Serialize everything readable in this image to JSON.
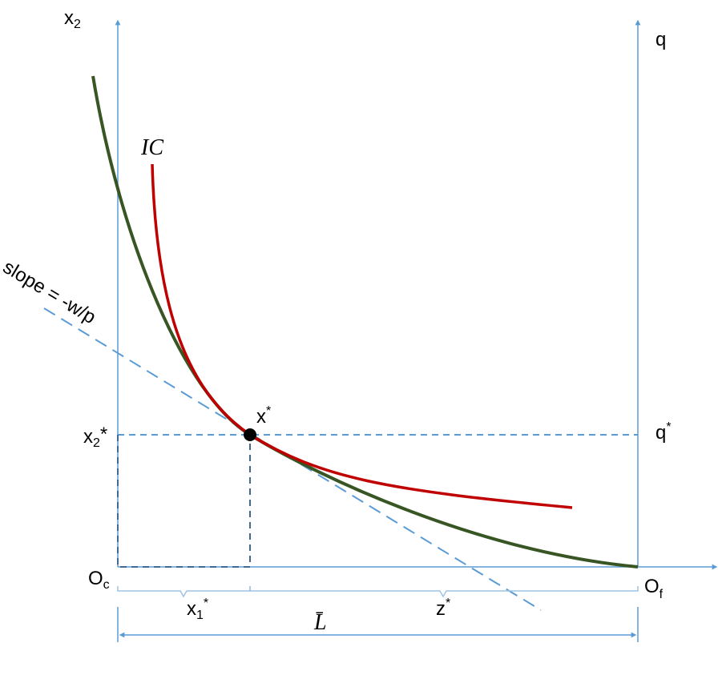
{
  "axes": {
    "left": {
      "base": "x",
      "sub": "2"
    },
    "right": "q",
    "origin_left": {
      "base": "O",
      "sub": "c"
    },
    "origin_right": {
      "base": "O",
      "sub": "f"
    }
  },
  "curves": {
    "indifference": "IC"
  },
  "budget_line": "slope = -w/p",
  "point": {
    "base": "x",
    "sup": "*"
  },
  "levels": {
    "x2_star": {
      "base": "x",
      "sub": "2",
      "sup": "*"
    },
    "q_star": {
      "base": "q",
      "sup": "*"
    }
  },
  "segments": {
    "x1_star": {
      "base": "x",
      "sub": "1",
      "sup": "*"
    },
    "z_star": {
      "base": "z",
      "sup": "*"
    },
    "total": "L̄"
  }
}
